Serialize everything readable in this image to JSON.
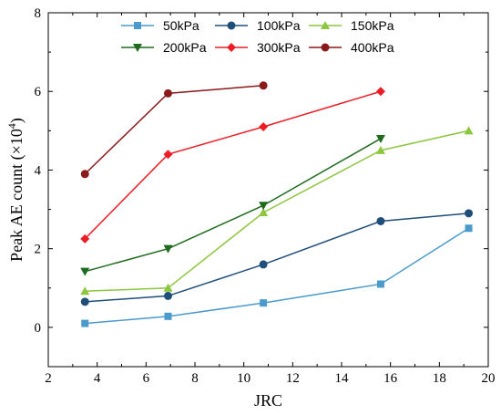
{
  "chart_data": {
    "type": "line",
    "xlabel": "JRC",
    "ylabel": "Peak AE count (×10",
    "ylabel_exponent": "4",
    "ylabel_close": ")",
    "xlim": [
      2,
      20
    ],
    "ylim": [
      -1,
      8
    ],
    "xticks": [
      2,
      4,
      6,
      8,
      10,
      12,
      14,
      16,
      18,
      20
    ],
    "yticks": [
      0,
      2,
      4,
      6,
      8
    ],
    "grid": false,
    "legend_position": "top",
    "series": [
      {
        "name": "50kPa",
        "color": "#4a9acb",
        "marker": "square",
        "x": [
          3.5,
          6.9,
          10.8,
          15.6,
          19.2
        ],
        "y": [
          0.1,
          0.28,
          0.62,
          1.1,
          2.52
        ]
      },
      {
        "name": "100kPa",
        "color": "#1f4e79",
        "marker": "circle",
        "x": [
          3.5,
          6.9,
          10.8,
          15.6,
          19.2
        ],
        "y": [
          0.65,
          0.8,
          1.6,
          2.7,
          2.9
        ]
      },
      {
        "name": "150kPa",
        "color": "#8dc63f",
        "marker": "triangle-up",
        "x": [
          3.5,
          6.9,
          10.8,
          15.6,
          19.2
        ],
        "y": [
          0.92,
          1.0,
          2.92,
          4.5,
          5.0
        ]
      },
      {
        "name": "200kPa",
        "color": "#1e6b1e",
        "marker": "triangle-down",
        "x": [
          3.5,
          6.9,
          10.8,
          15.6
        ],
        "y": [
          1.42,
          2.0,
          3.1,
          4.8
        ]
      },
      {
        "name": "300kPa",
        "color": "#ee1c25",
        "marker": "diamond",
        "x": [
          3.5,
          6.9,
          10.8,
          15.6
        ],
        "y": [
          2.25,
          4.4,
          5.1,
          6.0
        ]
      },
      {
        "name": "400kPa",
        "color": "#8b1a1a",
        "marker": "circle",
        "x": [
          3.5,
          6.9,
          10.8
        ],
        "y": [
          3.9,
          5.95,
          6.15
        ]
      }
    ]
  }
}
